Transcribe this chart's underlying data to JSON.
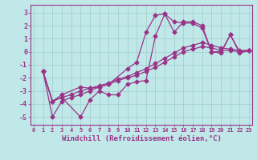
{
  "background_color": "#c0e8e8",
  "grid_color": "#a0cccc",
  "line_color": "#993388",
  "marker": "D",
  "markersize": 2.5,
  "linewidth": 0.9,
  "xlabel": "Windchill (Refroidissement éolien,°C)",
  "xlabel_fontsize": 6.5,
  "ytick_labels": [
    "3",
    "2",
    "1",
    "0",
    "-1",
    "-2",
    "-3",
    "-4",
    "-5"
  ],
  "ytick_values": [
    3,
    2,
    1,
    0,
    -1,
    -2,
    -3,
    -4,
    -5
  ],
  "ylim": [
    -5.6,
    3.6
  ],
  "xlim": [
    -0.3,
    23.3
  ],
  "xtick_values": [
    0,
    1,
    2,
    3,
    4,
    5,
    6,
    7,
    8,
    9,
    10,
    11,
    12,
    13,
    14,
    15,
    16,
    17,
    18,
    19,
    20,
    21,
    22,
    23
  ],
  "curves": [
    {
      "x": [
        1,
        2,
        3,
        5,
        6,
        7,
        8,
        10,
        11,
        12,
        13,
        14,
        15,
        16,
        17,
        18,
        19,
        20,
        21,
        22,
        23
      ],
      "y": [
        -1.5,
        -3.8,
        -3.3,
        -2.7,
        -2.8,
        -2.7,
        -2.5,
        -1.3,
        -0.8,
        1.5,
        2.8,
        2.9,
        2.3,
        2.2,
        2.2,
        1.8,
        0.0,
        -0.1,
        1.3,
        -0.1,
        0.1
      ]
    },
    {
      "x": [
        1,
        2,
        3,
        4,
        5,
        6,
        7,
        8,
        9,
        10,
        11,
        12,
        13,
        14,
        15,
        16,
        17,
        18,
        19,
        20,
        21,
        22,
        23
      ],
      "y": [
        -1.5,
        -5.0,
        -3.8,
        -3.5,
        -3.3,
        -3.0,
        -2.7,
        -2.5,
        -2.2,
        -2.0,
        -1.8,
        -1.5,
        -1.2,
        -0.8,
        -0.4,
        0.0,
        0.2,
        0.4,
        0.3,
        0.1,
        0.1,
        0.0,
        0.1
      ]
    },
    {
      "x": [
        1,
        2,
        3,
        4,
        5,
        6,
        7,
        8,
        9,
        10,
        11,
        12,
        13,
        14,
        15,
        16,
        17,
        18,
        19,
        20,
        21,
        22,
        23
      ],
      "y": [
        -1.5,
        -3.8,
        -3.5,
        -3.3,
        -3.0,
        -2.8,
        -2.6,
        -2.4,
        -2.1,
        -1.9,
        -1.6,
        -1.3,
        -0.9,
        -0.5,
        -0.1,
        0.3,
        0.5,
        0.7,
        0.5,
        0.3,
        0.2,
        0.1,
        0.1
      ]
    },
    {
      "x": [
        1,
        2,
        3,
        5,
        6,
        7,
        8,
        9,
        10,
        11,
        12,
        13,
        14,
        15,
        16,
        17,
        18,
        19,
        20,
        21,
        22,
        23
      ],
      "y": [
        -1.5,
        -3.8,
        -3.5,
        -5.0,
        -3.7,
        -3.0,
        -3.3,
        -3.3,
        -2.5,
        -2.3,
        -2.2,
        1.2,
        2.9,
        1.5,
        2.3,
        2.3,
        2.0,
        0.0,
        0.0,
        1.3,
        0.0,
        0.1
      ]
    }
  ]
}
